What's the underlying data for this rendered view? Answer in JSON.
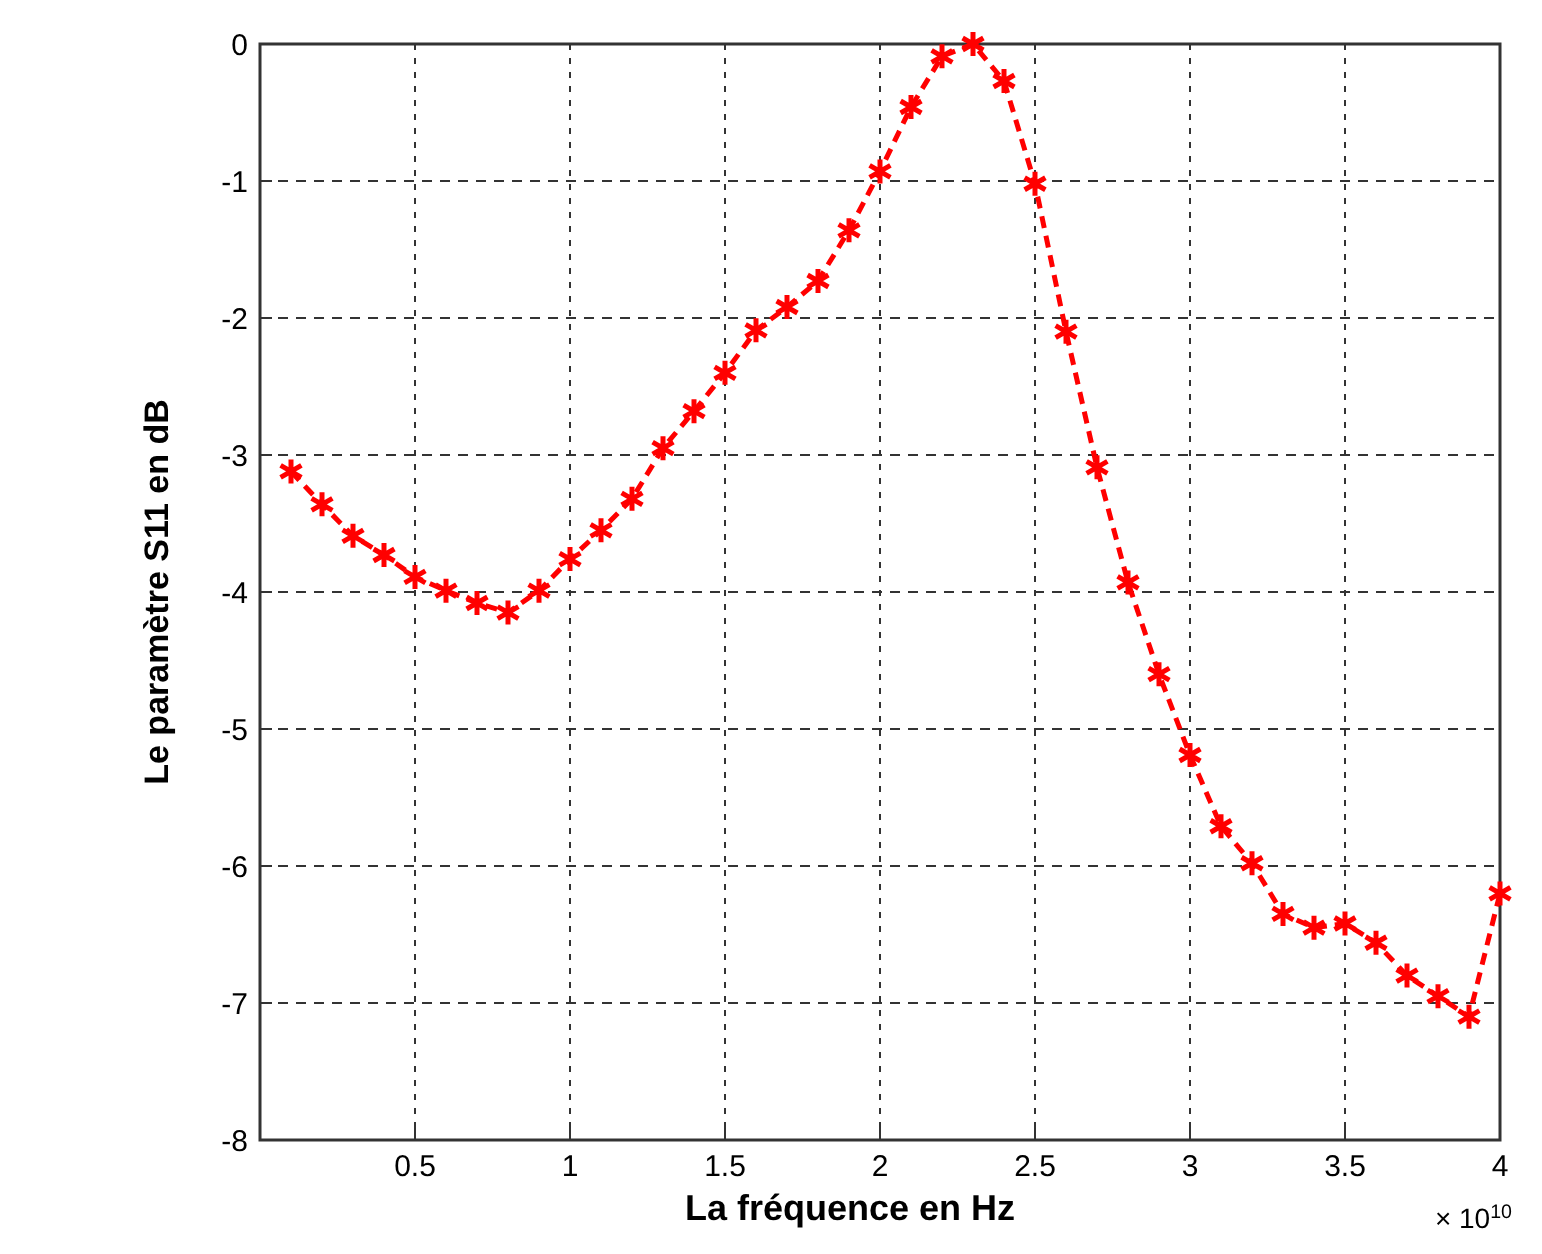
{
  "chart_data": {
    "type": "line",
    "xlabel": "La fréquence en Hz",
    "ylabel": "Le paramètre S11 en dB",
    "annotations": [
      "× 10$^{10}$"
    ],
    "x": [
      0.1,
      0.2,
      0.3,
      0.4,
      0.5,
      0.6,
      0.7,
      0.8,
      0.9,
      1.0,
      1.1,
      1.2,
      1.3,
      1.4,
      1.5,
      1.6,
      1.7,
      1.8,
      1.9,
      2.0,
      2.1,
      2.2,
      2.3,
      2.4,
      2.5,
      2.6,
      2.7,
      2.8,
      2.9,
      3.0,
      3.1,
      3.2,
      3.3,
      3.4,
      3.5,
      3.6,
      3.7,
      3.8,
      3.9,
      4.0
    ],
    "series": [
      {
        "color": "#ff0000",
        "values": [
          -3.12,
          -3.36,
          -3.59,
          -3.73,
          -3.89,
          -3.99,
          -4.08,
          -4.15,
          -3.99,
          -3.76,
          -3.55,
          -3.32,
          -2.95,
          -2.68,
          -2.4,
          -2.09,
          -1.92,
          -1.73,
          -1.36,
          -0.93,
          -0.46,
          -0.09,
          0,
          -0.27,
          -1.02,
          -2.1,
          -3.09,
          -3.93,
          -4.6,
          -5.19,
          -5.71,
          -5.98,
          -6.35,
          -6.45,
          -6.42,
          -6.56,
          -6.8,
          -6.95,
          -7.1,
          -6.2
        ]
      }
    ],
    "xlim": [
      0,
      4
    ],
    "xticks": [
      0.5,
      1,
      1.5,
      2,
      2.5,
      3,
      3.5,
      4
    ],
    "ylim": [
      -8,
      0
    ],
    "yticks": [
      -8,
      -7,
      -6,
      -5,
      -4,
      -3,
      -2,
      -1,
      0
    ],
    "grid": true,
    "marker": "cross",
    "line_style": "dashed"
  }
}
